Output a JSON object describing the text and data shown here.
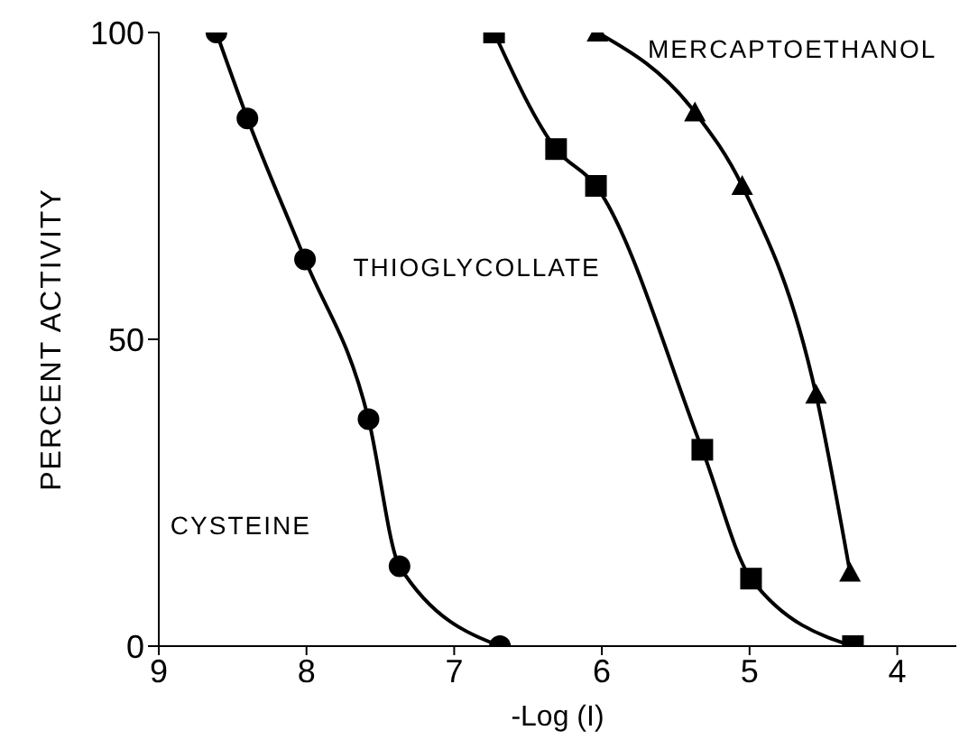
{
  "chart_data": {
    "type": "line",
    "xlabel": "-Log (I)",
    "ylabel": "PERCENT ACTIVITY",
    "xlim": [
      9,
      3.6
    ],
    "xticks": [
      9,
      8,
      7,
      6,
      5,
      4
    ],
    "ylim": [
      0,
      100
    ],
    "yticks": [
      0,
      50,
      100
    ],
    "grid": false,
    "legend": false,
    "line_style": "solid",
    "series": [
      {
        "name": "CYSTEINE",
        "color": "#000000",
        "marker": "circle",
        "x": [
          8.61,
          8.4,
          8.01,
          7.58,
          7.37,
          6.69
        ],
        "values": [
          100,
          86,
          63,
          37,
          13,
          0
        ]
      },
      {
        "name": "THIOGLYCOLLATE",
        "color": "#000000",
        "marker": "square",
        "x": [
          6.73,
          6.31,
          6.04,
          5.32,
          4.99,
          4.3
        ],
        "values": [
          100,
          81,
          75,
          32,
          11,
          0
        ]
      },
      {
        "name": "MERCAPTOETHANOL",
        "color": "#000000",
        "marker": "triangle",
        "x": [
          6.03,
          5.37,
          5.05,
          4.55,
          4.32
        ],
        "values": [
          100,
          87,
          75,
          41,
          12
        ]
      }
    ]
  }
}
